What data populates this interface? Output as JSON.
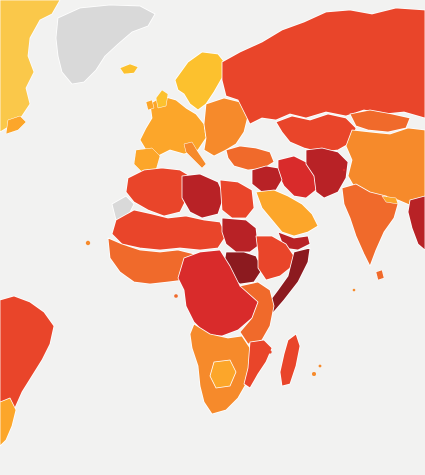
{
  "map": {
    "type": "choropleth-world-map",
    "legend_printed": false,
    "colors": {
      "background": "#f2f2f1",
      "no_data": "#d9d9d9",
      "border": "#ffffff",
      "scale": [
        "#fcc12e",
        "#fca62a",
        "#f68a2b",
        "#f06a2b",
        "#e9452a",
        "#d92b2b",
        "#b82226",
        "#8c1a1f"
      ]
    },
    "regions": [
      {
        "name": "greenland",
        "fill": "#d9d9d9"
      },
      {
        "name": "canada-usa",
        "fill": "#fcc12e"
      },
      {
        "name": "scandinavia",
        "fill": "#fcc12e"
      },
      {
        "name": "western-europe",
        "fill": "#fca62a"
      },
      {
        "name": "eastern-europe",
        "fill": "#f68a2b"
      },
      {
        "name": "russia",
        "fill": "#e9452a"
      },
      {
        "name": "turkey-caucasus",
        "fill": "#f06a2b"
      },
      {
        "name": "central-asia",
        "fill": "#e9452a"
      },
      {
        "name": "china",
        "fill": "#f68a2b"
      },
      {
        "name": "mongolia",
        "fill": "#f06a2b"
      },
      {
        "name": "india",
        "fill": "#f06a2b"
      },
      {
        "name": "southeast-asia",
        "fill": "#b82226"
      },
      {
        "name": "iran",
        "fill": "#d92b2b"
      },
      {
        "name": "afghanistan-pakistan",
        "fill": "#b82226"
      },
      {
        "name": "iraq-syria",
        "fill": "#b82226"
      },
      {
        "name": "arabian-peninsula",
        "fill": "#fca62a"
      },
      {
        "name": "yemen",
        "fill": "#b82226"
      },
      {
        "name": "north-africa-west",
        "fill": "#e9452a"
      },
      {
        "name": "libya",
        "fill": "#b82226"
      },
      {
        "name": "egypt",
        "fill": "#e9452a"
      },
      {
        "name": "sahel",
        "fill": "#e9452a"
      },
      {
        "name": "sudan",
        "fill": "#b82226"
      },
      {
        "name": "south-sudan",
        "fill": "#8c1a1f"
      },
      {
        "name": "horn-of-africa",
        "fill": "#e9452a"
      },
      {
        "name": "somalia",
        "fill": "#8c1a1f"
      },
      {
        "name": "west-africa",
        "fill": "#f06a2b"
      },
      {
        "name": "central-africa",
        "fill": "#d92b2b"
      },
      {
        "name": "east-africa",
        "fill": "#f06a2b"
      },
      {
        "name": "southern-africa",
        "fill": "#f68a2b"
      },
      {
        "name": "botswana",
        "fill": "#fca62a"
      },
      {
        "name": "mozambique",
        "fill": "#e9452a"
      },
      {
        "name": "madagascar",
        "fill": "#e9452a"
      },
      {
        "name": "south-america",
        "fill": "#e9452a"
      },
      {
        "name": "chile-argentina",
        "fill": "#fca62a"
      },
      {
        "name": "western-sahara",
        "fill": "#d9d9d9"
      }
    ]
  }
}
